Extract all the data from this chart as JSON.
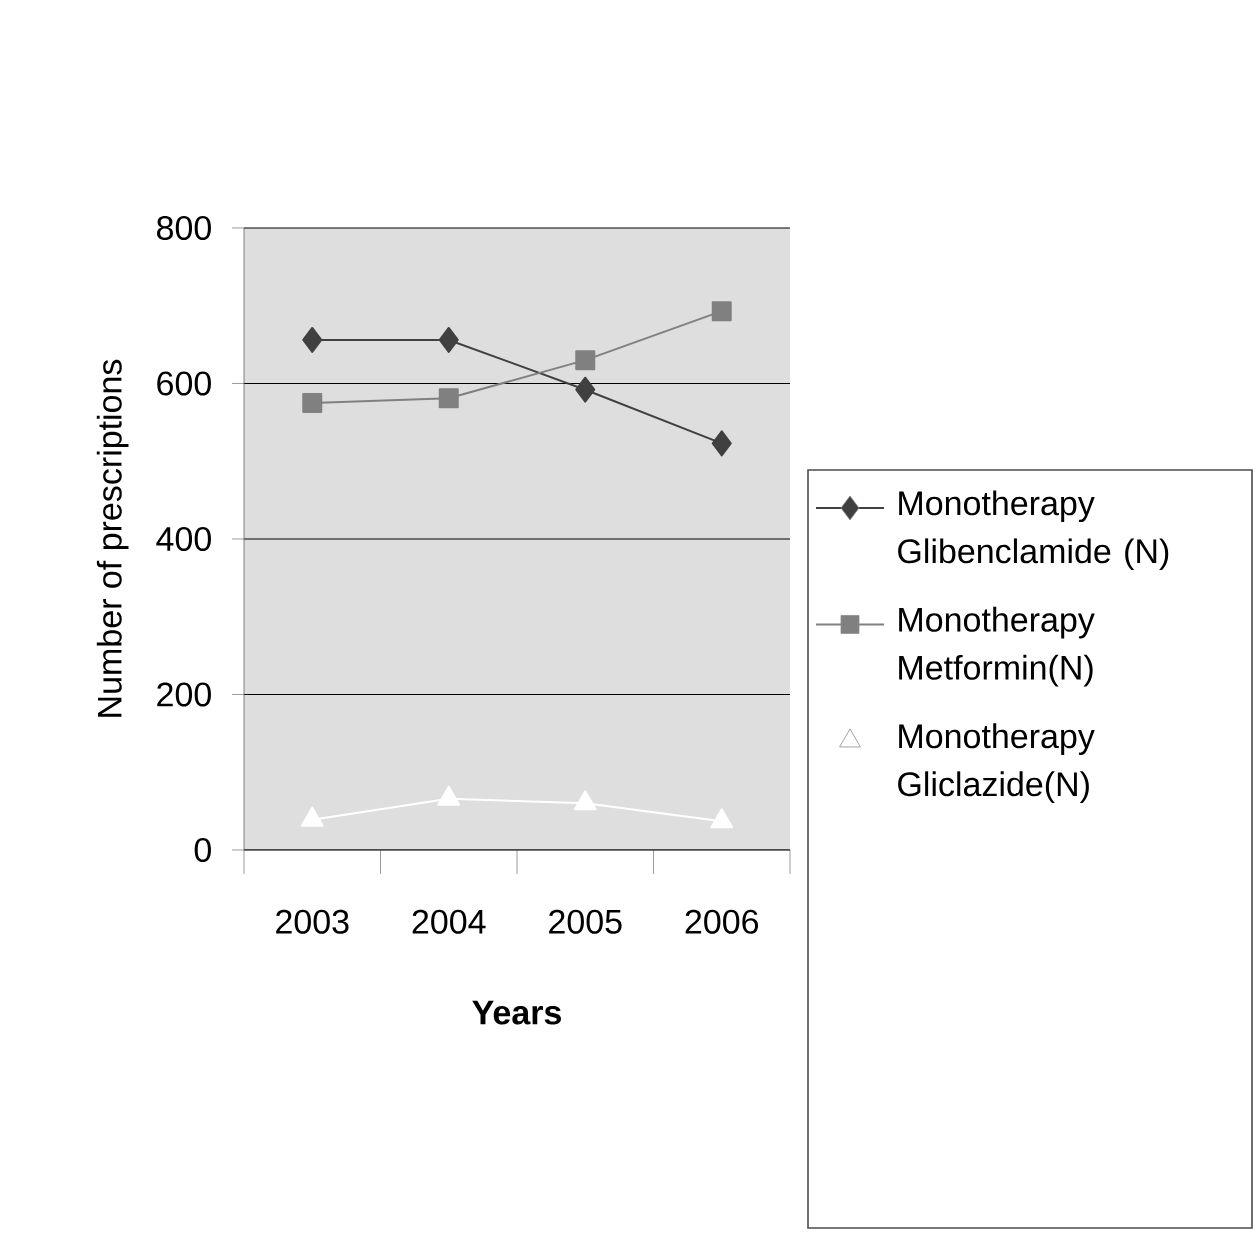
{
  "chart_data": {
    "type": "line",
    "xlabel": "Years",
    "ylabel": "Number of prescriptions",
    "categories": [
      "2003",
      "2004",
      "2005",
      "2006"
    ],
    "ylim": [
      0,
      800
    ],
    "yticks": [
      0,
      200,
      400,
      600,
      800
    ],
    "grid": "y",
    "legend": "right",
    "series": [
      {
        "name": "Monotherapy Glibenclamide (N)",
        "color": "#404040",
        "marker": "diamond",
        "values": [
          656,
          656,
          592,
          523
        ]
      },
      {
        "name": "Monotherapy Metformin(N)",
        "color": "#808080",
        "marker": "square",
        "values": [
          575,
          581,
          630,
          693
        ]
      },
      {
        "name": "Monotherapy Gliclazide(N)",
        "color": "#ffffff",
        "marker": "triangle",
        "values": [
          39,
          66,
          60,
          37
        ]
      }
    ]
  }
}
